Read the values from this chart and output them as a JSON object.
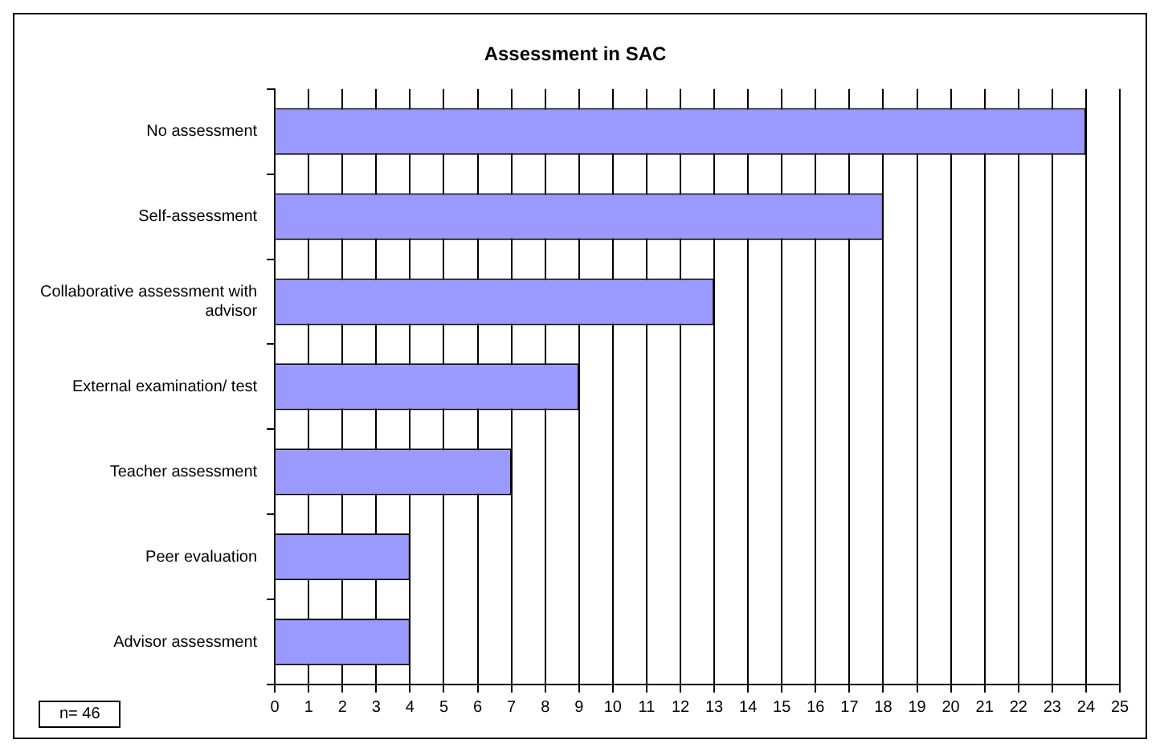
{
  "chart_data": {
    "type": "bar",
    "orientation": "horizontal",
    "title": "Assessment in SAC",
    "categories": [
      "No assessment",
      "Self-assessment",
      "Collaborative assessment with advisor",
      "External examination/ test",
      "Teacher assessment",
      "Peer evaluation",
      "Advisor assessment"
    ],
    "values": [
      24,
      18,
      13,
      9,
      7,
      4,
      4
    ],
    "color": "#9999ff",
    "xlim": [
      0,
      25
    ],
    "xticks": [
      0,
      1,
      2,
      3,
      4,
      5,
      6,
      7,
      8,
      9,
      10,
      11,
      12,
      13,
      14,
      15,
      16,
      17,
      18,
      19,
      20,
      21,
      22,
      23,
      24,
      25
    ],
    "grid": "x",
    "legend": false,
    "annotations": [
      "n= 46"
    ]
  }
}
